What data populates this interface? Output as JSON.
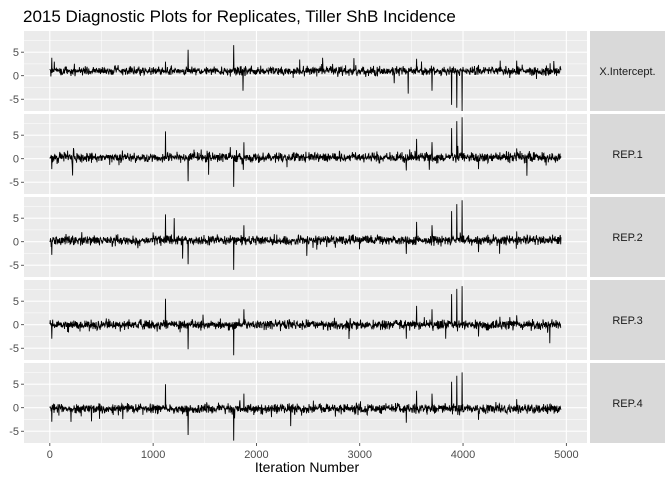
{
  "chart_data": {
    "type": "line",
    "title": "2015 Diagnostic Plots for Replicates, Tiller ShB Incidence",
    "xlabel": "Iteration Number",
    "ylabel": "",
    "xlim": [
      -250,
      5200
    ],
    "ylim": [
      -7.5,
      9.5
    ],
    "x_ticks": [
      0,
      1000,
      2000,
      3000,
      4000,
      5000
    ],
    "y_ticks": [
      -5,
      0,
      5
    ],
    "n_iterations": 4950,
    "grid": true,
    "legend": "none",
    "colors": {
      "panel_bg": "#ebebeb",
      "grid": "#ffffff",
      "strip_bg": "#d9d9d9",
      "line": "#000000"
    },
    "series": [
      {
        "name": "X.Intercept.",
        "baseline": 1,
        "noise": 0.45,
        "spikes": [
          [
            20,
            3.8
          ],
          [
            1120,
            3.0
          ],
          [
            1340,
            5.5
          ],
          [
            1780,
            6.5
          ],
          [
            1870,
            -3.2
          ],
          [
            2640,
            3.8
          ],
          [
            3470,
            -3.8
          ],
          [
            3550,
            3.6
          ],
          [
            3700,
            -3.2
          ],
          [
            3890,
            -6.2
          ],
          [
            3940,
            -6.8
          ],
          [
            3990,
            -7.5
          ],
          [
            4150,
            2.3
          ],
          [
            4520,
            3.2
          ]
        ]
      },
      {
        "name": "REP.1",
        "baseline": 0.3,
        "noise": 0.5,
        "spikes": [
          [
            20,
            -2.2
          ],
          [
            1120,
            5.8
          ],
          [
            1340,
            -4.8
          ],
          [
            1780,
            -6.0
          ],
          [
            1880,
            3.5
          ],
          [
            3450,
            -2.5
          ],
          [
            3550,
            4.2
          ],
          [
            3700,
            3.5
          ],
          [
            3890,
            6.5
          ],
          [
            3940,
            8.0
          ],
          [
            3990,
            8.8
          ],
          [
            4150,
            -2.2
          ],
          [
            4520,
            2.2
          ]
        ]
      },
      {
        "name": "REP.2",
        "baseline": 0.3,
        "noise": 0.5,
        "spikes": [
          [
            20,
            -2.8
          ],
          [
            1120,
            5.8
          ],
          [
            1340,
            -4.8
          ],
          [
            1780,
            -6.0
          ],
          [
            1880,
            3.5
          ],
          [
            3450,
            -2.6
          ],
          [
            3550,
            4.2
          ],
          [
            3700,
            3.5
          ],
          [
            3890,
            6.5
          ],
          [
            3940,
            8.0
          ],
          [
            3990,
            8.8
          ],
          [
            4150,
            -2.2
          ],
          [
            4520,
            2.2
          ]
        ]
      },
      {
        "name": "REP.3",
        "baseline": 0,
        "noise": 0.5,
        "spikes": [
          [
            20,
            -3.0
          ],
          [
            1120,
            5.5
          ],
          [
            1340,
            -5.2
          ],
          [
            1780,
            -6.5
          ],
          [
            1880,
            3.3
          ],
          [
            3450,
            -3.0
          ],
          [
            3550,
            4.0
          ],
          [
            3700,
            3.3
          ],
          [
            3890,
            6.5
          ],
          [
            3940,
            7.6
          ],
          [
            3990,
            8.2
          ],
          [
            4150,
            -2.5
          ],
          [
            4520,
            2.0
          ]
        ]
      },
      {
        "name": "REP.4",
        "baseline": -0.2,
        "noise": 0.5,
        "spikes": [
          [
            20,
            -3.0
          ],
          [
            1120,
            5.0
          ],
          [
            1340,
            -5.8
          ],
          [
            1780,
            -7.0
          ],
          [
            1880,
            3.0
          ],
          [
            3450,
            -3.2
          ],
          [
            3550,
            3.6
          ],
          [
            3700,
            3.0
          ],
          [
            3890,
            5.5
          ],
          [
            3940,
            6.8
          ],
          [
            3990,
            7.5
          ],
          [
            4150,
            -2.6
          ],
          [
            4520,
            1.8
          ]
        ]
      }
    ]
  }
}
